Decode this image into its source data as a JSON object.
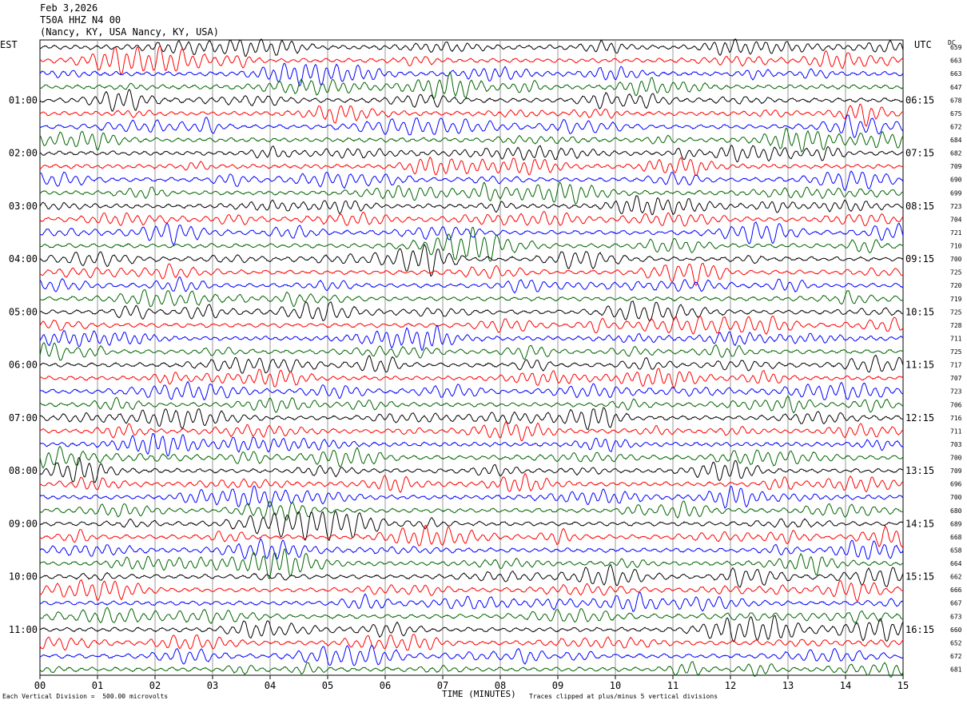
{
  "header": {
    "date": "Feb 3,2026",
    "station": "T50A HHZ N4 00",
    "location": "(Nancy, KY, USA Nancy, KY, USA)"
  },
  "left_timezone": "EST",
  "right_timezone": "UTC",
  "dc_label": "DC",
  "footer": {
    "scale_note": "Each Vertical Division =  500.00 microvolts",
    "xlabel": "TIME (MINUTES)",
    "clip_note": "Traces clipped at plus/minus 5 vertical divisions"
  },
  "chart_data": {
    "type": "line",
    "title": "T50A HHZ N4 00",
    "xlabel": "TIME (MINUTES)",
    "xlim": [
      0,
      15
    ],
    "x_ticks": [
      "00",
      "01",
      "02",
      "03",
      "04",
      "05",
      "06",
      "07",
      "08",
      "09",
      "10",
      "11",
      "12",
      "13",
      "14",
      "15"
    ],
    "left_time_labels": [
      "01:00",
      "02:00",
      "03:00",
      "04:00",
      "05:00",
      "06:00",
      "07:00",
      "08:00",
      "09:00",
      "10:00",
      "11:00"
    ],
    "right_time_labels": [
      "06:15",
      "07:15",
      "08:15",
      "09:15",
      "10:15",
      "11:15",
      "12:15",
      "13:15",
      "14:15",
      "15:15",
      "16:15"
    ],
    "trace_color_cycle": [
      "#000000",
      "#ff0000",
      "#0000ff",
      "#006400"
    ],
    "trace_dc_offsets": [
      659,
      663,
      663,
      647,
      678,
      675,
      672,
      684,
      682,
      709,
      690,
      699,
      723,
      704,
      721,
      710,
      700,
      725,
      720,
      719,
      725,
      728,
      711,
      725,
      717,
      707,
      723,
      706,
      716,
      711,
      703,
      700,
      709,
      696,
      700,
      680,
      689,
      668,
      658,
      664,
      662,
      666,
      667,
      673,
      660,
      652,
      672,
      681
    ],
    "grid": true
  }
}
